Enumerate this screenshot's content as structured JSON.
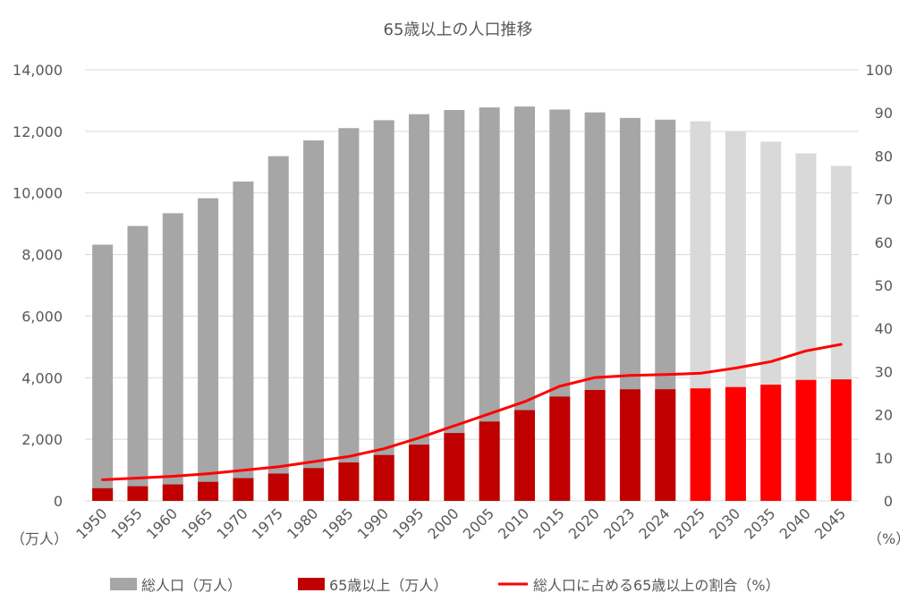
{
  "chart_data": {
    "type": "bar",
    "title": "65歳以上の人口推移",
    "left_axis_unit": "（万人）",
    "right_axis_unit": "（%）",
    "categories": [
      "1950",
      "1955",
      "1960",
      "1965",
      "1970",
      "1975",
      "1980",
      "1985",
      "1990",
      "1995",
      "2000",
      "2005",
      "2010",
      "2015",
      "2020",
      "2023",
      "2024",
      "2025",
      "2030",
      "2035",
      "2040",
      "2045"
    ],
    "projection_from_index": 17,
    "y_left": {
      "min": 0,
      "max": 14000,
      "ticks": [
        "0",
        "2,000",
        "4,000",
        "6,000",
        "8,000",
        "10,000",
        "12,000",
        "14,000"
      ],
      "tick_values": [
        0,
        2000,
        4000,
        6000,
        8000,
        10000,
        12000,
        14000
      ]
    },
    "y_right": {
      "min": 0,
      "max": 100,
      "ticks": [
        "0",
        "10",
        "20",
        "30",
        "40",
        "50",
        "60",
        "70",
        "80",
        "90",
        "100"
      ],
      "tick_values": [
        0,
        10,
        20,
        30,
        40,
        50,
        60,
        70,
        80,
        90,
        100
      ]
    },
    "grid": true,
    "legend_position": "bottom",
    "series": [
      {
        "name": "総人口（万人）",
        "type": "bar",
        "axis": "left",
        "values": [
          8320,
          8928,
          9342,
          9828,
          10372,
          11194,
          11706,
          12105,
          12361,
          12557,
          12693,
          12777,
          12806,
          12709,
          12615,
          12435,
          12380,
          12326,
          12012,
          11664,
          11284,
          10880
        ]
      },
      {
        "name": "65歳以上（万人）",
        "type": "bar",
        "axis": "left",
        "values": [
          411,
          475,
          535,
          618,
          739,
          887,
          1065,
          1247,
          1489,
          1826,
          2204,
          2576,
          2948,
          3387,
          3602,
          3623,
          3625,
          3653,
          3696,
          3773,
          3928,
          3945
        ]
      },
      {
        "name": "総人口に占める65歳以上の割合（%）",
        "type": "line",
        "axis": "right",
        "values": [
          4.9,
          5.3,
          5.7,
          6.3,
          7.1,
          7.9,
          9.1,
          10.3,
          12.1,
          14.6,
          17.4,
          20.2,
          23.0,
          26.6,
          28.6,
          29.1,
          29.3,
          29.6,
          30.8,
          32.3,
          34.8,
          36.3
        ]
      }
    ],
    "colors": {
      "total": "#a6a6a6",
      "total_projection": "#d9d9d9",
      "elderly": "#c00000",
      "elderly_projection": "#ff0000",
      "ratio_line": "#ff0000",
      "grid": "#d9d9d9"
    }
  }
}
